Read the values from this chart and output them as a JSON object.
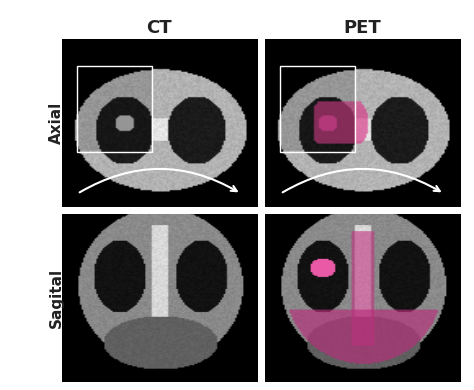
{
  "title_ct": "CT",
  "title_pet": "PET",
  "label_axial": "Axial",
  "label_sagital": "Sagital",
  "bg_color": "#ffffff",
  "panel_bg": "#1a1a1a",
  "ct_axial_bg": "#8a8a8a",
  "pet_axial_bg": "#9a9a9a",
  "ct_sag_bg": "#6a7070",
  "pet_sag_bg": "#6a7070",
  "lung_dark": "#111111",
  "bone_light": "#cccccc",
  "pet_highlight": "#cc4488",
  "pet_highlight2": "#e060a0",
  "nodule_color": "#f080c0",
  "row_label_color": "#222222",
  "col_label_color": "#222222",
  "arrow_color": "#ffffff",
  "title_fontsize": 13,
  "label_fontsize": 11
}
